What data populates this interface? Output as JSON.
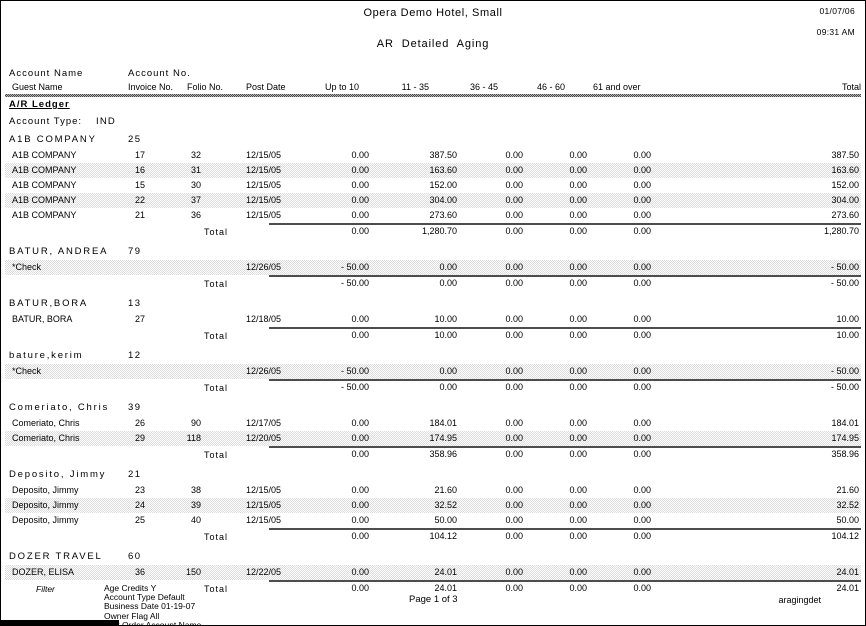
{
  "header": {
    "hotel_name": "Opera Demo Hotel, Small",
    "date": "01/07/06",
    "time": "09:31 AM",
    "title": "AR Detailed Aging"
  },
  "table_headers": {
    "account_name": "Account Name",
    "account_no": "Account No.",
    "guest_name": "Guest Name",
    "invoice_no": "Invoice No.",
    "folio_no": "Folio No.",
    "post_date": "Post Date",
    "bucket_up_to_10": "Up to 10",
    "bucket_11_35": "11 - 35",
    "bucket_36_45": "36 - 45",
    "bucket_46_60": "46 - 60",
    "bucket_61_over": "61 and over",
    "total": "Total"
  },
  "ledger": {
    "title": "A/R Ledger",
    "account_type_label": "Account Type:",
    "account_type_value": "IND",
    "total_label": "Total",
    "accounts": [
      {
        "name": "A1B COMPANY",
        "number": "25",
        "rows": [
          {
            "guest": "A1B COMPANY",
            "invoice": "17",
            "folio": "32",
            "post_date": "12/15/05",
            "up_to_10": "0.00",
            "b11_35": "387.50",
            "b36_45": "0.00",
            "b46_60": "0.00",
            "b61_over": "0.00",
            "total": "387.50",
            "shaded": false
          },
          {
            "guest": "A1B COMPANY",
            "invoice": "16",
            "folio": "31",
            "post_date": "12/15/05",
            "up_to_10": "0.00",
            "b11_35": "163.60",
            "b36_45": "0.00",
            "b46_60": "0.00",
            "b61_over": "0.00",
            "total": "163.60",
            "shaded": true
          },
          {
            "guest": "A1B COMPANY",
            "invoice": "15",
            "folio": "30",
            "post_date": "12/15/05",
            "up_to_10": "0.00",
            "b11_35": "152.00",
            "b36_45": "0.00",
            "b46_60": "0.00",
            "b61_over": "0.00",
            "total": "152.00",
            "shaded": false
          },
          {
            "guest": "A1B COMPANY",
            "invoice": "22",
            "folio": "37",
            "post_date": "12/15/05",
            "up_to_10": "0.00",
            "b11_35": "304.00",
            "b36_45": "0.00",
            "b46_60": "0.00",
            "b61_over": "0.00",
            "total": "304.00",
            "shaded": true
          },
          {
            "guest": "A1B COMPANY",
            "invoice": "21",
            "folio": "36",
            "post_date": "12/15/05",
            "up_to_10": "0.00",
            "b11_35": "273.60",
            "b36_45": "0.00",
            "b46_60": "0.00",
            "b61_over": "0.00",
            "total": "273.60",
            "shaded": false
          }
        ],
        "totals": {
          "up_to_10": "0.00",
          "b11_35": "1,280.70",
          "b36_45": "0.00",
          "b46_60": "0.00",
          "b61_over": "0.00",
          "total": "1,280.70"
        }
      },
      {
        "name": "BATUR, ANDREA",
        "number": "79",
        "rows": [
          {
            "guest": "*Check",
            "invoice": "",
            "folio": "",
            "post_date": "12/26/05",
            "up_to_10": "- 50.00",
            "b11_35": "0.00",
            "b36_45": "0.00",
            "b46_60": "0.00",
            "b61_over": "0.00",
            "total": "- 50.00",
            "shaded": true
          }
        ],
        "totals": {
          "up_to_10": "- 50.00",
          "b11_35": "0.00",
          "b36_45": "0.00",
          "b46_60": "0.00",
          "b61_over": "0.00",
          "total": "- 50.00"
        }
      },
      {
        "name": "BATUR,BORA",
        "number": "13",
        "rows": [
          {
            "guest": "BATUR, BORA",
            "invoice": "27",
            "folio": "",
            "post_date": "12/18/05",
            "up_to_10": "0.00",
            "b11_35": "10.00",
            "b36_45": "0.00",
            "b46_60": "0.00",
            "b61_over": "0.00",
            "total": "10.00",
            "shaded": false
          }
        ],
        "totals": {
          "up_to_10": "0.00",
          "b11_35": "10.00",
          "b36_45": "0.00",
          "b46_60": "0.00",
          "b61_over": "0.00",
          "total": "10.00"
        }
      },
      {
        "name": "bature,kerim",
        "number": "12",
        "rows": [
          {
            "guest": "*Check",
            "invoice": "",
            "folio": "",
            "post_date": "12/26/05",
            "up_to_10": "- 50.00",
            "b11_35": "0.00",
            "b36_45": "0.00",
            "b46_60": "0.00",
            "b61_over": "0.00",
            "total": "- 50.00",
            "shaded": true
          }
        ],
        "totals": {
          "up_to_10": "- 50.00",
          "b11_35": "0.00",
          "b36_45": "0.00",
          "b46_60": "0.00",
          "b61_over": "0.00",
          "total": "- 50.00"
        }
      },
      {
        "name": "Comeriato, Chris",
        "number": "39",
        "rows": [
          {
            "guest": "Comeriato, Chris",
            "invoice": "26",
            "folio": "90",
            "post_date": "12/17/05",
            "up_to_10": "0.00",
            "b11_35": "184.01",
            "b36_45": "0.00",
            "b46_60": "0.00",
            "b61_over": "0.00",
            "total": "184.01",
            "shaded": false
          },
          {
            "guest": "Comeriato, Chris",
            "invoice": "29",
            "folio": "118",
            "post_date": "12/20/05",
            "up_to_10": "0.00",
            "b11_35": "174.95",
            "b36_45": "0.00",
            "b46_60": "0.00",
            "b61_over": "0.00",
            "total": "174.95",
            "shaded": true
          }
        ],
        "totals": {
          "up_to_10": "0.00",
          "b11_35": "358.96",
          "b36_45": "0.00",
          "b46_60": "0.00",
          "b61_over": "0.00",
          "total": "358.96"
        }
      },
      {
        "name": "Deposito, Jimmy",
        "number": "21",
        "rows": [
          {
            "guest": "Deposito, Jimmy",
            "invoice": "23",
            "folio": "38",
            "post_date": "12/15/05",
            "up_to_10": "0.00",
            "b11_35": "21.60",
            "b36_45": "0.00",
            "b46_60": "0.00",
            "b61_over": "0.00",
            "total": "21.60",
            "shaded": false
          },
          {
            "guest": "Deposito, Jimmy",
            "invoice": "24",
            "folio": "39",
            "post_date": "12/15/05",
            "up_to_10": "0.00",
            "b11_35": "32.52",
            "b36_45": "0.00",
            "b46_60": "0.00",
            "b61_over": "0.00",
            "total": "32.52",
            "shaded": true
          },
          {
            "guest": "Deposito, Jimmy",
            "invoice": "25",
            "folio": "40",
            "post_date": "12/15/05",
            "up_to_10": "0.00",
            "b11_35": "50.00",
            "b36_45": "0.00",
            "b46_60": "0.00",
            "b61_over": "0.00",
            "total": "50.00",
            "shaded": false
          }
        ],
        "totals": {
          "up_to_10": "0.00",
          "b11_35": "104.12",
          "b36_45": "0.00",
          "b46_60": "0.00",
          "b61_over": "0.00",
          "total": "104.12"
        }
      },
      {
        "name": "DOZER TRAVEL",
        "number": "60",
        "rows": [
          {
            "guest": "DOZER, ELISA",
            "invoice": "36",
            "folio": "150",
            "post_date": "12/22/05",
            "up_to_10": "0.00",
            "b11_35": "24.01",
            "b36_45": "0.00",
            "b46_60": "0.00",
            "b61_over": "0.00",
            "total": "24.01",
            "shaded": true
          }
        ],
        "totals": {
          "up_to_10": "0.00",
          "b11_35": "24.01",
          "b36_45": "0.00",
          "b46_60": "0.00",
          "b61_over": "0.00",
          "total": "24.01"
        }
      }
    ]
  },
  "footer": {
    "filter_label": "Filter",
    "filter_lines": [
      "Age Credits Y",
      "Account Type Default",
      "Business Date 01-19-07",
      "Owner Flag All",
      "Sort Order Account Name"
    ],
    "page_info": "Page 1 of 3",
    "report_code": "aragingdet"
  }
}
